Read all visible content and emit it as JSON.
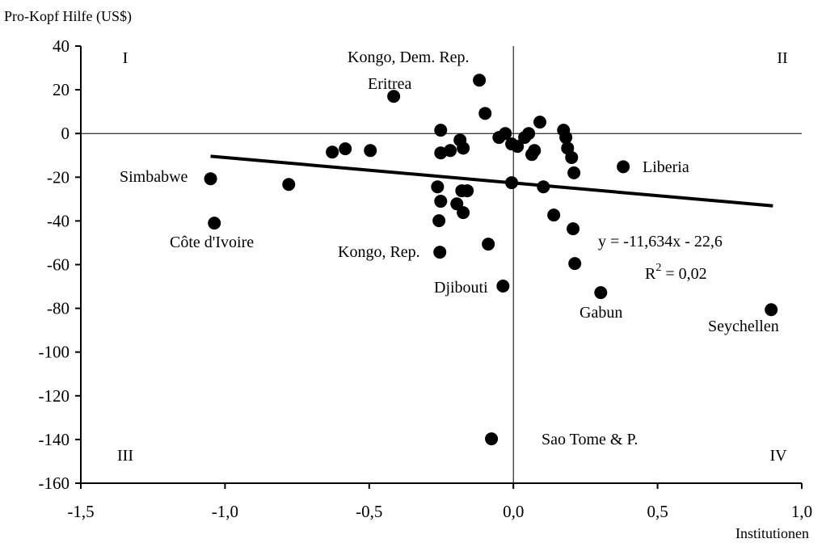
{
  "chart_data": {
    "type": "scatter",
    "y_label": "Pro-Kopf Hilfe (US$)",
    "x_label": "Institutionen",
    "color": "#000000",
    "xlim": [
      -1.5,
      1.0
    ],
    "ylim": [
      -160,
      40
    ],
    "xticks": [
      {
        "value": -1.5,
        "label": "-1,5"
      },
      {
        "value": -1.0,
        "label": "-1,0"
      },
      {
        "value": -0.5,
        "label": "-0,5"
      },
      {
        "value": 0.0,
        "label": "0,0"
      },
      {
        "value": 0.5,
        "label": "0,5"
      },
      {
        "value": 1.0,
        "label": "1,0"
      }
    ],
    "yticks": [
      -160,
      -140,
      -120,
      -100,
      -80,
      -60,
      -40,
      -20,
      0,
      20,
      40
    ],
    "x": [
      -0.118,
      -0.415,
      -0.098,
      0.092,
      -0.252,
      -0.028,
      -0.05,
      0.053,
      0.039,
      0.174,
      0.182,
      -0.006,
      0.014,
      0.073,
      0.064,
      0.188,
      0.202,
      0.21,
      -0.185,
      -0.174,
      -0.219,
      -0.252,
      -0.628,
      -0.583,
      -0.496,
      0.381,
      -1.05,
      -0.779,
      -0.263,
      -0.252,
      -0.16,
      -0.179,
      -0.006,
      0.104,
      -0.196,
      -0.174,
      -0.258,
      0.14,
      -1.037,
      0.207,
      -0.087,
      -0.255,
      0.213,
      -0.036,
      0.303,
      0.894,
      -0.076
    ],
    "values": [
      24.4,
      17,
      9.2,
      5.2,
      1.5,
      0,
      -1.8,
      0,
      -1.8,
      1.5,
      -1.8,
      -4.8,
      -5.9,
      -7.8,
      -9.6,
      -6.7,
      -11,
      -18,
      -3,
      -6.7,
      -7.8,
      -8.9,
      -8.5,
      -7,
      -7.8,
      -15.2,
      -20.7,
      -23.3,
      -24.4,
      -31,
      -26.2,
      -26.2,
      -22.5,
      -24.4,
      -32.2,
      -36.2,
      -39.9,
      -37.3,
      -41,
      -43.6,
      -50.6,
      -54.3,
      -59.5,
      -69.8,
      -72.8,
      -80.6,
      -139.7
    ],
    "trendline": {
      "x": [
        -1.05,
        0.9
      ],
      "y": [
        -10.4,
        -33.1
      ]
    },
    "equation": "y = -11,634x - 22,6",
    "r2": [
      "R",
      "2",
      " = 0,02"
    ],
    "quadrants": [
      "I",
      "II",
      "III",
      "IV"
    ],
    "annotations": [
      "Kongo, Dem. Rep.",
      "Eritrea",
      "Simbabwe",
      "Côte d'Ivoire",
      "Kongo, Rep.",
      "Djibouti",
      "Liberia",
      "Gabun",
      "Seychellen",
      "Sao Tome & P."
    ]
  }
}
